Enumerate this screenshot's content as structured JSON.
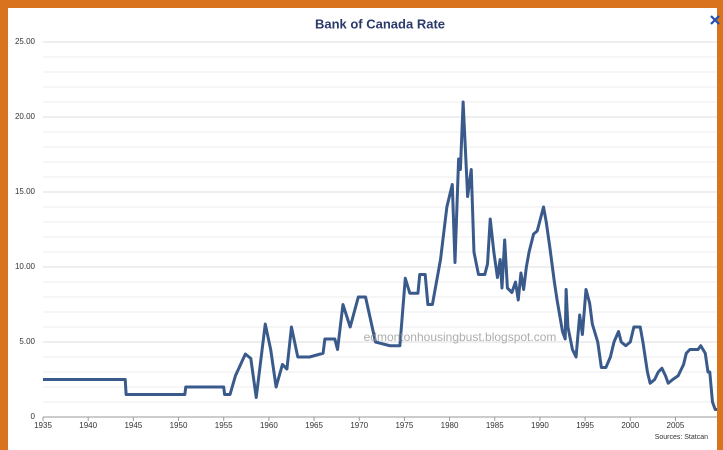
{
  "chart_data": {
    "type": "line",
    "title": "Bank of Canada Rate",
    "watermark": "edmontonhousingbust.blogspot.com",
    "source": "Sources: Statcan",
    "series": [
      {
        "name": "Bank of Canada Rate",
        "color": "#3a5a8c",
        "x": [
          1935,
          1944.1,
          1944.2,
          1950.7,
          1950.8,
          1955.0,
          1955.1,
          1955.7,
          1956.3,
          1957.4,
          1958.0,
          1958.6,
          1959.6,
          1960.2,
          1960.8,
          1961.5,
          1962.0,
          1962.5,
          1963.2,
          1964.5,
          1966.0,
          1966.2,
          1967.3,
          1967.6,
          1968.2,
          1969.0,
          1969.9,
          1970.7,
          1971.8,
          1973.4,
          1974.5,
          1975.1,
          1975.6,
          1976.5,
          1976.7,
          1977.3,
          1977.6,
          1978.1,
          1979.0,
          1979.7,
          1980.3,
          1980.6,
          1981.0,
          1981.2,
          1981.5,
          1982.0,
          1982.4,
          1982.7,
          1983.2,
          1983.9,
          1984.2,
          1984.5,
          1984.9,
          1985.3,
          1985.6,
          1985.8,
          1986.1,
          1986.4,
          1986.9,
          1987.3,
          1987.6,
          1987.9,
          1988.2,
          1988.5,
          1988.8,
          1989.3,
          1989.7,
          1990.4,
          1990.7,
          1991.1,
          1991.6,
          1991.9,
          1992.5,
          1992.8,
          1992.9,
          1993.1,
          1993.6,
          1994.0,
          1994.4,
          1994.7,
          1995.1,
          1995.5,
          1995.8,
          1996.4,
          1996.8,
          1997.3,
          1997.8,
          1998.2,
          1998.7,
          1999.0,
          1999.5,
          2000.0,
          2000.4,
          2001.1,
          2001.4,
          2001.9,
          2002.2,
          2002.7,
          2003.1,
          2003.5,
          2003.9,
          2004.2,
          2004.7,
          2005.3,
          2005.9,
          2006.2,
          2006.6,
          2007.5,
          2007.8,
          2008.3,
          2008.6,
          2008.8,
          2009.1,
          2009.4,
          2009.6
        ],
        "values": [
          2.5,
          2.5,
          1.5,
          1.5,
          2.0,
          2.0,
          1.5,
          1.5,
          2.75,
          4.2,
          3.9,
          1.3,
          6.2,
          4.5,
          2.0,
          3.5,
          3.2,
          6.0,
          4.0,
          4.0,
          4.25,
          5.2,
          5.2,
          4.5,
          7.5,
          6.0,
          8.0,
          8.0,
          5.0,
          4.75,
          4.75,
          9.25,
          8.25,
          8.25,
          9.5,
          9.5,
          7.5,
          7.5,
          10.5,
          14.0,
          15.5,
          10.3,
          17.2,
          16.5,
          21.0,
          14.7,
          16.5,
          11.0,
          9.5,
          9.5,
          10.2,
          13.2,
          11.0,
          9.3,
          10.5,
          8.6,
          11.8,
          8.6,
          8.3,
          9.0,
          7.8,
          9.6,
          8.5,
          10.0,
          11.0,
          12.2,
          12.4,
          14.0,
          13.0,
          11.3,
          9.0,
          7.8,
          5.7,
          5.2,
          8.5,
          6.0,
          4.5,
          4.0,
          6.8,
          5.5,
          8.5,
          7.6,
          6.2,
          5.0,
          3.3,
          3.3,
          4.0,
          5.0,
          5.7,
          5.0,
          4.75,
          5.0,
          6.0,
          6.0,
          5.0,
          3.0,
          2.25,
          2.5,
          3.0,
          3.25,
          2.75,
          2.25,
          2.5,
          2.75,
          3.5,
          4.25,
          4.5,
          4.5,
          4.75,
          4.25,
          3.0,
          3.0,
          1.0,
          0.5,
          0.5
        ]
      }
    ],
    "xlim": [
      1935,
      2009.6
    ],
    "xticks": [
      1935,
      1940,
      1945,
      1950,
      1955,
      1960,
      1965,
      1970,
      1975,
      1980,
      1985,
      1990,
      1995,
      2000,
      2005
    ],
    "ylim": [
      0,
      25
    ],
    "yticks": [
      0,
      {
        "value": 5,
        "label": "5.00"
      },
      {
        "value": 10,
        "label": "10.00"
      },
      {
        "value": 15,
        "label": "15.00"
      },
      {
        "value": 20,
        "label": "20.00"
      },
      {
        "value": 25,
        "label": "25.00"
      }
    ],
    "minor_yticks": [
      1,
      2,
      3,
      4,
      6,
      7,
      8,
      9,
      11,
      12,
      13,
      14,
      16,
      17,
      18,
      19,
      21,
      22,
      23,
      24
    ],
    "grid": true
  }
}
